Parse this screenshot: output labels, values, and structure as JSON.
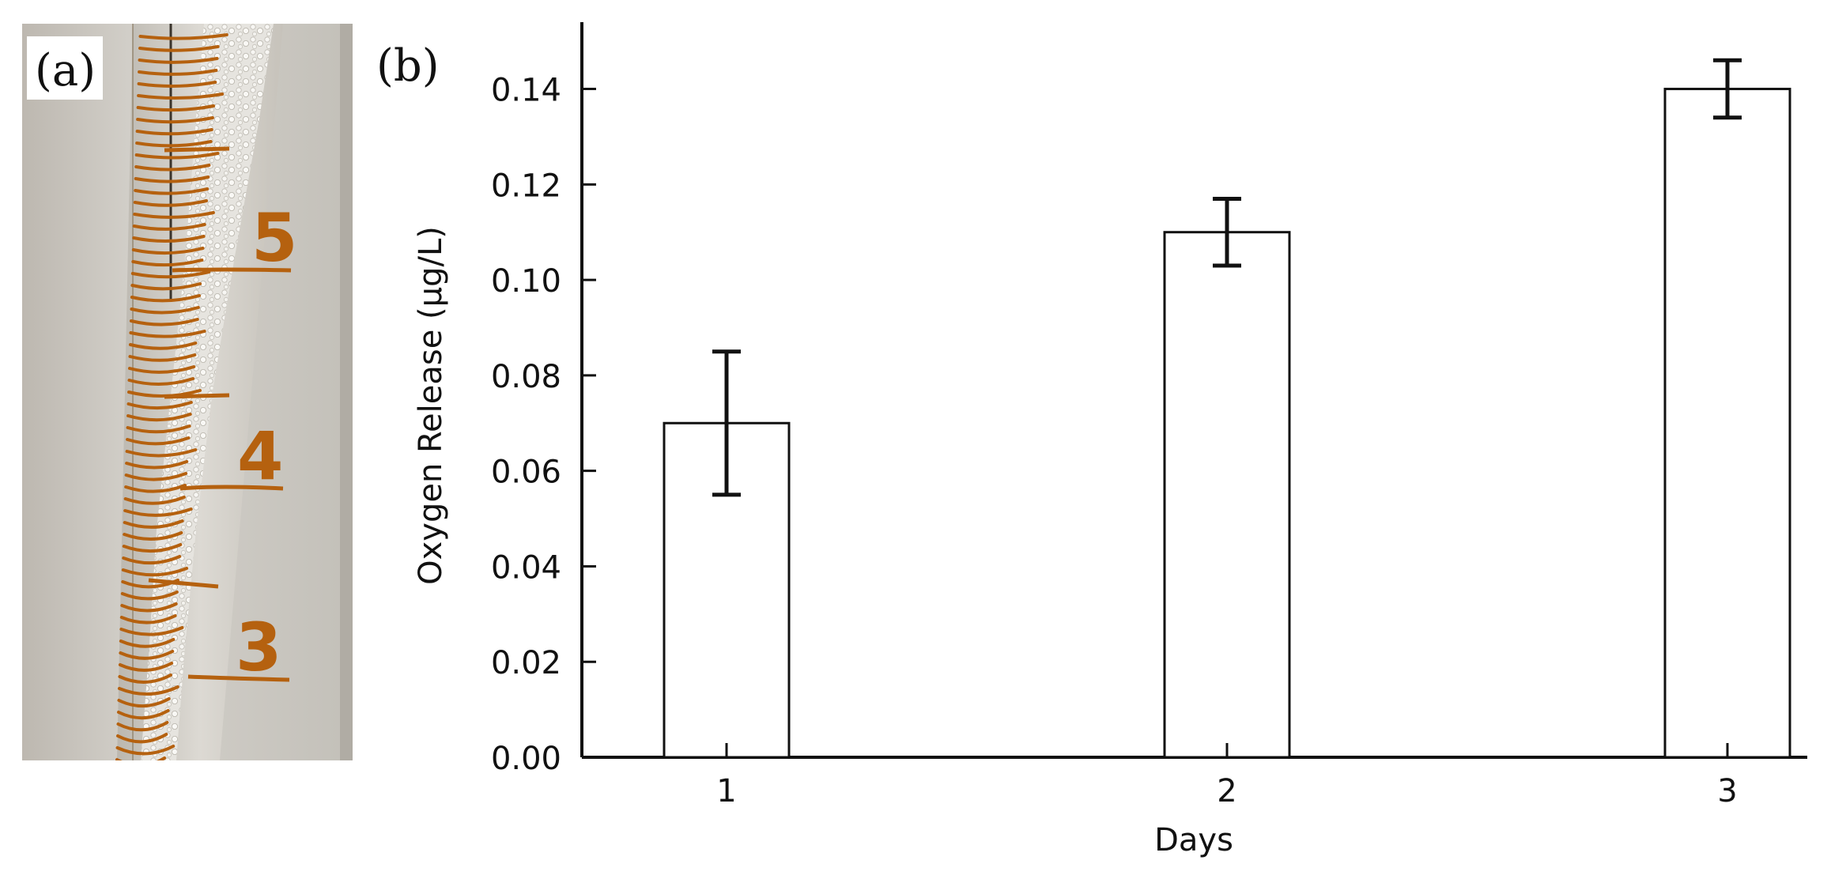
{
  "panels": {
    "a": {
      "label": "(a)",
      "scale_marks": [
        "5",
        "4",
        "3"
      ]
    },
    "b": {
      "label": "(b)"
    }
  },
  "colors": {
    "scale_orange": "#b5610f",
    "bar_fill": "#ffffff",
    "axis": "#111111",
    "photo_background": "#c9c6bf"
  },
  "chart_data": {
    "type": "bar",
    "categories": [
      "1",
      "2",
      "3"
    ],
    "values": [
      0.07,
      0.11,
      0.14
    ],
    "errors": [
      0.015,
      0.007,
      0.006
    ],
    "xlabel": "Days",
    "ylabel": "Oxygen Release (µg/L)",
    "ylim": [
      0,
      0.154
    ],
    "yticks": [
      "0.00",
      "0.02",
      "0.04",
      "0.06",
      "0.08",
      "0.10",
      "0.12",
      "0.14"
    ],
    "grid": false
  }
}
